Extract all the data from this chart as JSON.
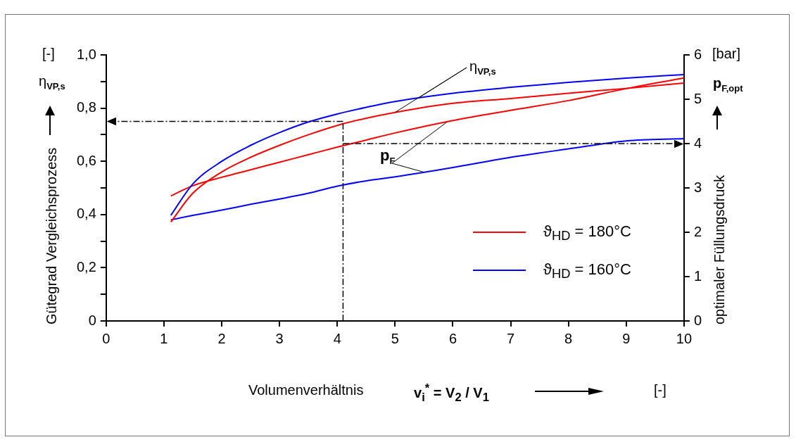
{
  "chart_data": {
    "type": "line",
    "xlabel": "Volumenverhältnis",
    "ylabel": "Gütegrad Vergleichsprozess",
    "y2label": "optimaler Füllungsdruck",
    "xlim": [
      0,
      10
    ],
    "xticks": [
      0,
      1,
      2,
      3,
      4,
      5,
      6,
      7,
      8,
      9,
      10
    ],
    "ylim": [
      0,
      1
    ],
    "yticks": [
      {
        "value": 0,
        "label": "0"
      },
      {
        "value": 0.1,
        "label": null
      },
      {
        "value": 0.2,
        "label": "0,2"
      },
      {
        "value": 0.3,
        "label": null
      },
      {
        "value": 0.4,
        "label": "0,4"
      },
      {
        "value": 0.5,
        "label": null
      },
      {
        "value": 0.6,
        "label": "0,6"
      },
      {
        "value": 0.7,
        "label": null
      },
      {
        "value": 0.8,
        "label": "0,8"
      },
      {
        "value": 0.9,
        "label": null
      },
      {
        "value": 1,
        "label": "1,0"
      }
    ],
    "y2lim": [
      0,
      6
    ],
    "y2ticks": [
      0,
      1,
      2,
      3,
      4,
      5,
      6
    ],
    "grid": false,
    "legend": "right",
    "marker": "none",
    "series": [
      {
        "name": "ϑ$_{HD}$ = 180°C",
        "color": "#ff0000",
        "x": [
          1.12,
          1.5,
          2,
          2.5,
          3,
          3.5,
          4,
          4.5,
          5,
          6,
          7,
          8,
          9,
          10
        ],
        "values": [
          0.372,
          0.48,
          0.56,
          0.615,
          0.66,
          0.7,
          0.735,
          0.762,
          0.784,
          0.818,
          0.836,
          0.856,
          0.874,
          0.894
        ]
      },
      {
        "name": "ϑ$_{HD}$ = 160°C",
        "color": "#0000ff",
        "x": [
          1.12,
          1.5,
          2,
          2.5,
          3,
          3.5,
          4,
          4.5,
          5,
          6,
          7,
          8,
          9,
          10
        ],
        "values": [
          0.397,
          0.515,
          0.6,
          0.66,
          0.708,
          0.748,
          0.778,
          0.803,
          0.825,
          0.856,
          0.878,
          0.897,
          0.913,
          0.926
        ]
      },
      {
        "color": "#ff0000",
        "axis": "y2",
        "x": [
          1.12,
          1.5,
          2,
          2.5,
          3,
          3.5,
          4,
          4.5,
          5,
          6,
          7,
          8,
          9,
          10
        ],
        "values": [
          2.82,
          3.05,
          3.24,
          3.41,
          3.58,
          3.75,
          3.92,
          4.08,
          4.24,
          4.52,
          4.75,
          4.97,
          5.24,
          5.48
        ]
      },
      {
        "color": "#0000ff",
        "axis": "y2",
        "x": [
          1.12,
          1.5,
          2,
          2.5,
          3,
          3.5,
          4,
          4.5,
          5,
          6,
          7,
          8,
          9,
          10
        ],
        "values": [
          2.28,
          2.38,
          2.5,
          2.63,
          2.75,
          2.88,
          3.04,
          3.16,
          3.25,
          3.46,
          3.69,
          3.88,
          4.06,
          4.11
        ]
      }
    ],
    "ref_lines": [
      {
        "axis": "x",
        "value": 4.1,
        "line_style": "dashed"
      },
      {
        "axis": "y",
        "value": 0.75,
        "line_style": "dashed"
      },
      {
        "axis": "y2",
        "value": 4,
        "line_style": "dashed"
      }
    ],
    "annotations": [
      "[-]",
      "η$_{VP,s}$",
      "[bar]",
      "p$_{F,opt}$",
      "v$_{i}$$^{*}$ = V$_{2}$ / V$_{1}$",
      "[-]",
      {
        "text": "η$_{VP,s}$",
        "x": 5,
        "y": 0.784
      },
      {
        "text": "p$_{F}$",
        "x": 5.9,
        "y": 0.748
      }
    ]
  }
}
